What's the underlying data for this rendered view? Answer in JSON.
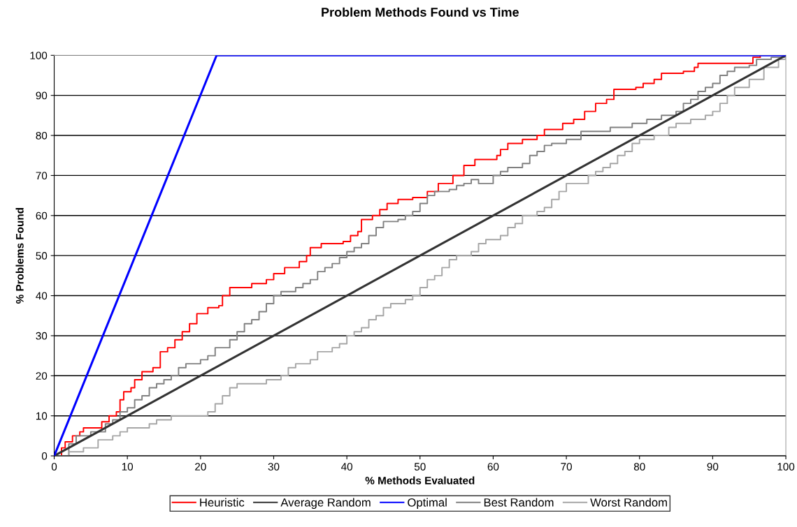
{
  "chart_data": {
    "type": "step",
    "title": "Problem Methods Found vs Time",
    "xlabel": "% Methods Evaluated",
    "ylabel": "% Problems Found",
    "xlim": [
      0,
      100
    ],
    "ylim": [
      0,
      100
    ],
    "xticks": [
      0,
      10,
      20,
      30,
      40,
      50,
      60,
      70,
      80,
      90,
      100
    ],
    "yticks": [
      0,
      10,
      20,
      30,
      40,
      50,
      60,
      70,
      80,
      90,
      100
    ],
    "grid": "y",
    "legend": "bottom",
    "marker": "none",
    "line_style": "solid",
    "series": [
      {
        "name": "Heuristic",
        "color": "#ff0000",
        "x": [
          0,
          1,
          1.5,
          2.5,
          3.5,
          4,
          6,
          6.5,
          7.5,
          8.5,
          9,
          9.5,
          10.5,
          11,
          12,
          13.5,
          14.5,
          15.5,
          16.5,
          17.5,
          18.5,
          19.5,
          21,
          22.5,
          23,
          24,
          26.5,
          27,
          29,
          30,
          31.5,
          33.5,
          34.5,
          35,
          36.5,
          39.5,
          40.5,
          41.5,
          42,
          43.5,
          44.5,
          45.5,
          47,
          49,
          51,
          52.5,
          54.5,
          56,
          57.5,
          60.5,
          61,
          62,
          64,
          66,
          67,
          69.5,
          71,
          72.5,
          74,
          75.5,
          76.5,
          79.5,
          80.5,
          82,
          83,
          86,
          87.5,
          88,
          94,
          95.5,
          96.5
        ],
        "values": [
          0,
          2,
          3.5,
          5,
          6,
          7,
          7,
          8.5,
          10,
          11,
          14,
          16,
          17,
          19,
          21,
          22,
          26,
          27,
          29,
          31,
          33,
          35.5,
          37,
          37.5,
          40,
          42,
          42,
          43,
          44,
          45.5,
          47,
          48.5,
          50,
          52,
          53,
          53.5,
          55,
          56,
          59,
          60,
          61.5,
          63,
          64,
          64.5,
          66,
          68,
          70,
          72.5,
          74,
          75,
          76.5,
          78,
          79,
          80,
          81.5,
          83,
          84,
          86,
          88,
          89,
          91.5,
          92,
          93,
          94,
          95.5,
          96,
          97,
          98,
          98,
          99.5,
          100
        ]
      },
      {
        "name": "Average Random",
        "color": "#333333",
        "type": "line",
        "x": [
          0,
          100
        ],
        "values": [
          0,
          100
        ]
      },
      {
        "name": "Optimal",
        "color": "#0000ff",
        "type": "line",
        "x": [
          0,
          22.2,
          100
        ],
        "values": [
          0,
          100,
          100
        ]
      },
      {
        "name": "Best Random",
        "color": "#808080",
        "x": [
          0,
          2,
          3,
          5,
          7,
          8,
          9,
          10,
          11,
          12,
          13,
          14,
          15,
          16,
          17,
          18,
          20,
          21,
          22,
          24,
          25,
          26,
          27,
          28,
          29,
          30,
          31,
          33,
          34,
          35,
          36,
          37,
          38,
          39,
          40,
          41,
          42,
          43,
          44,
          45,
          47,
          48,
          49,
          50,
          51,
          52,
          54,
          55,
          56,
          57,
          58,
          60,
          61,
          62,
          64,
          65,
          66,
          67,
          68,
          70,
          72,
          76,
          79,
          81,
          83,
          85,
          86,
          87,
          88,
          89,
          90,
          91,
          92,
          93,
          95,
          96,
          98,
          100
        ],
        "values": [
          0,
          3,
          5,
          6,
          8,
          9,
          11,
          12,
          14,
          15,
          17,
          18,
          19,
          20,
          22,
          23,
          24,
          25,
          27,
          29,
          31,
          33,
          34,
          36,
          38,
          40,
          41,
          42,
          43,
          44,
          46,
          47,
          48,
          49.5,
          51,
          52,
          53,
          55,
          57,
          58.5,
          59,
          60,
          61,
          63,
          65,
          66,
          66.5,
          67.5,
          68,
          69,
          68,
          70,
          71,
          72,
          73,
          75,
          76,
          77.5,
          78,
          79,
          81,
          82,
          83,
          84,
          85,
          86,
          88,
          89,
          91,
          92,
          93,
          95,
          96,
          97,
          97.5,
          99,
          99.5,
          100
        ]
      },
      {
        "name": "Worst Random",
        "color": "#a6a6a6",
        "x": [
          0,
          2,
          4,
          6,
          8,
          9,
          10,
          13,
          14,
          16,
          20,
          21,
          22,
          23,
          24,
          25,
          28,
          29,
          31,
          32,
          33,
          35,
          36,
          38,
          39,
          40,
          41,
          42,
          43,
          44,
          45,
          46,
          48,
          49,
          50,
          51,
          52,
          53,
          54,
          55,
          57,
          58,
          59,
          61,
          62,
          63,
          64,
          66,
          67,
          68,
          69,
          70,
          72,
          73,
          74,
          75,
          76,
          77,
          78,
          79,
          80,
          82,
          84,
          85,
          87,
          88,
          89,
          90,
          91,
          92,
          93,
          95,
          97,
          99,
          100
        ],
        "values": [
          0,
          1,
          2,
          4,
          5,
          6,
          7,
          8,
          9,
          10,
          10,
          11,
          13,
          15,
          17,
          18,
          18,
          19,
          20,
          22,
          23,
          24,
          26,
          27,
          28,
          30,
          31,
          32,
          34,
          35,
          37,
          38,
          39,
          40,
          42,
          44,
          45,
          47,
          49,
          50,
          51,
          53,
          54,
          55,
          57,
          58,
          60,
          61,
          62,
          64,
          66,
          68,
          68,
          70,
          71,
          72,
          73,
          75,
          76,
          78,
          79,
          80,
          82,
          83,
          84,
          84,
          85,
          86,
          88,
          90,
          92,
          94,
          97,
          99,
          100
        ]
      }
    ]
  }
}
